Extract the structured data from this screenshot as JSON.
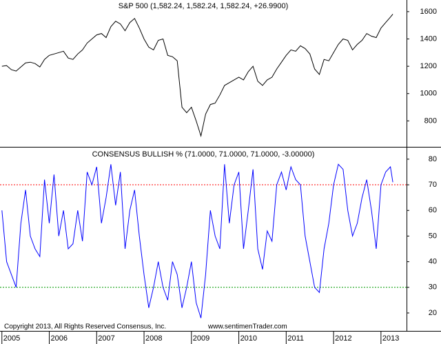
{
  "chart_data": [
    {
      "type": "line",
      "title": "S&P 500 (1,582.24, 1,582.24, 1,582.24, +26.9900)",
      "color": "#000000",
      "x": [
        2005.0,
        2005.1,
        2005.2,
        2005.3,
        2005.4,
        2005.5,
        2005.6,
        2005.7,
        2005.8,
        2005.9,
        2006.0,
        2006.1,
        2006.2,
        2006.3,
        2006.4,
        2006.5,
        2006.6,
        2006.7,
        2006.8,
        2006.9,
        2007.0,
        2007.1,
        2007.2,
        2007.3,
        2007.4,
        2007.5,
        2007.6,
        2007.7,
        2007.8,
        2007.9,
        2008.0,
        2008.1,
        2008.2,
        2008.3,
        2008.4,
        2008.5,
        2008.6,
        2008.7,
        2008.8,
        2008.9,
        2009.0,
        2009.1,
        2009.2,
        2009.3,
        2009.4,
        2009.5,
        2009.6,
        2009.7,
        2009.8,
        2009.9,
        2010.0,
        2010.1,
        2010.2,
        2010.3,
        2010.4,
        2010.5,
        2010.6,
        2010.7,
        2010.8,
        2010.9,
        2011.0,
        2011.1,
        2011.2,
        2011.3,
        2011.4,
        2011.5,
        2011.6,
        2011.7,
        2011.8,
        2011.9,
        2012.0,
        2012.1,
        2012.2,
        2012.3,
        2012.4,
        2012.5,
        2012.6,
        2012.7,
        2012.8,
        2012.9,
        2013.0,
        2013.1,
        2013.2,
        2013.25
      ],
      "values": [
        1200,
        1205,
        1175,
        1165,
        1195,
        1225,
        1230,
        1220,
        1195,
        1250,
        1280,
        1290,
        1300,
        1310,
        1260,
        1250,
        1290,
        1320,
        1370,
        1400,
        1430,
        1440,
        1410,
        1490,
        1530,
        1510,
        1460,
        1520,
        1550,
        1480,
        1400,
        1340,
        1320,
        1390,
        1400,
        1280,
        1270,
        1240,
        900,
        860,
        900,
        800,
        690,
        850,
        920,
        930,
        990,
        1060,
        1080,
        1100,
        1120,
        1100,
        1160,
        1200,
        1090,
        1060,
        1100,
        1120,
        1180,
        1230,
        1280,
        1320,
        1310,
        1350,
        1330,
        1290,
        1180,
        1140,
        1250,
        1240,
        1300,
        1360,
        1400,
        1390,
        1320,
        1360,
        1390,
        1440,
        1420,
        1410,
        1480,
        1520,
        1560,
        1582
      ],
      "xlim": [
        2004.96,
        2013.54
      ],
      "ylim": [
        610,
        1660
      ],
      "yticks": [
        800,
        1000,
        1200,
        1400,
        1600
      ]
    },
    {
      "type": "line",
      "title": "CONSENSUS BULLISH % (71.0000, 71.0000, 71.0000, -3.00000)",
      "color": "#0000ff",
      "x": [
        2005.0,
        2005.1,
        2005.2,
        2005.3,
        2005.4,
        2005.5,
        2005.6,
        2005.7,
        2005.8,
        2005.9,
        2006.0,
        2006.1,
        2006.2,
        2006.3,
        2006.4,
        2006.5,
        2006.6,
        2006.7,
        2006.8,
        2006.9,
        2007.0,
        2007.1,
        2007.2,
        2007.3,
        2007.4,
        2007.5,
        2007.6,
        2007.7,
        2007.8,
        2007.9,
        2008.0,
        2008.1,
        2008.2,
        2008.3,
        2008.4,
        2008.5,
        2008.6,
        2008.7,
        2008.8,
        2008.9,
        2009.0,
        2009.1,
        2009.2,
        2009.3,
        2009.4,
        2009.5,
        2009.6,
        2009.7,
        2009.8,
        2009.9,
        2010.0,
        2010.1,
        2010.2,
        2010.3,
        2010.4,
        2010.5,
        2010.6,
        2010.7,
        2010.8,
        2010.9,
        2011.0,
        2011.1,
        2011.2,
        2011.3,
        2011.4,
        2011.5,
        2011.6,
        2011.7,
        2011.8,
        2011.9,
        2012.0,
        2012.1,
        2012.2,
        2012.3,
        2012.4,
        2012.5,
        2012.6,
        2012.7,
        2012.8,
        2012.9,
        2013.0,
        2013.1,
        2013.2,
        2013.25
      ],
      "values": [
        60,
        40,
        35,
        30,
        55,
        68,
        50,
        45,
        42,
        72,
        55,
        74,
        50,
        60,
        45,
        47,
        60,
        48,
        75,
        70,
        77,
        55,
        65,
        78,
        62,
        75,
        45,
        60,
        68,
        50,
        35,
        22,
        30,
        40,
        30,
        25,
        40,
        35,
        22,
        30,
        40,
        24,
        18,
        35,
        60,
        50,
        45,
        78,
        55,
        70,
        75,
        45,
        60,
        76,
        45,
        37,
        52,
        48,
        70,
        75,
        68,
        77,
        72,
        70,
        50,
        40,
        30,
        28,
        45,
        55,
        70,
        78,
        76,
        60,
        50,
        55,
        65,
        72,
        60,
        45,
        70,
        75,
        77,
        71
      ],
      "xlim": [
        2004.96,
        2013.54
      ],
      "ylim": [
        13,
        84
      ],
      "yticks": [
        20,
        30,
        40,
        50,
        60,
        70,
        80
      ],
      "xticks": [
        2005,
        2006,
        2007,
        2008,
        2009,
        2010,
        2011,
        2012,
        2013
      ],
      "hlines": [
        {
          "value": 70,
          "color": "#ff0000"
        },
        {
          "value": 30,
          "color": "#009900"
        }
      ],
      "annotations": [
        "Copyright 2013, All Rights Reserved  Consensus, Inc.",
        "www.sentimenTrader.com"
      ]
    }
  ]
}
